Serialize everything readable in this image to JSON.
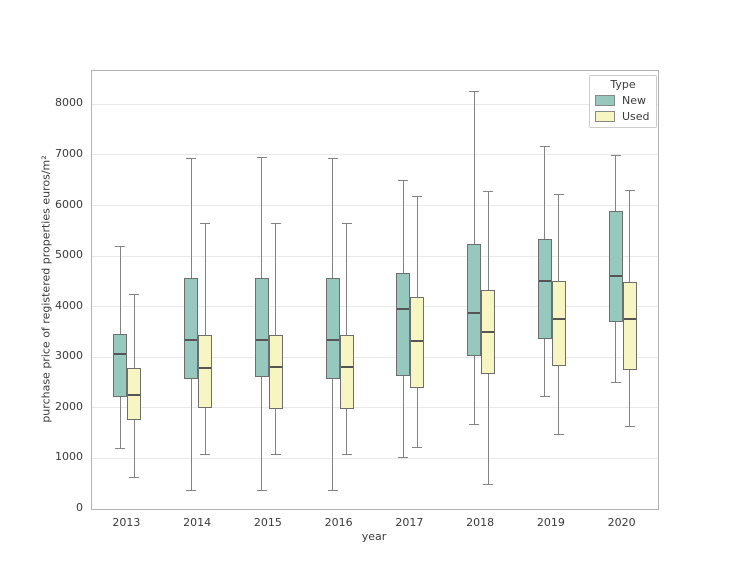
{
  "chart_data": {
    "type": "boxplot",
    "title": "",
    "xlabel": "year",
    "ylabel": "purchase price of registered properties euros/m²",
    "categories": [
      "2013",
      "2014",
      "2015",
      "2016",
      "2017",
      "2018",
      "2019",
      "2020"
    ],
    "yticks": [
      0,
      1000,
      2000,
      3000,
      4000,
      5000,
      6000,
      7000,
      8000
    ],
    "ylim": [
      0,
      8660
    ],
    "grid": "horizontal",
    "legend": {
      "title": "Type",
      "position": "upper right",
      "entries": [
        {
          "label": "New",
          "color": "#96c8be"
        },
        {
          "label": "Used",
          "color": "#f7f6c2"
        }
      ]
    },
    "series": [
      {
        "name": "New",
        "color": "#96c8be",
        "boxes": [
          {
            "min": 1200,
            "q1": 2220,
            "median": 3060,
            "q3": 3460,
            "max": 5190
          },
          {
            "min": 360,
            "q1": 2580,
            "median": 3340,
            "q3": 4570,
            "max": 6930
          },
          {
            "min": 360,
            "q1": 2600,
            "median": 3340,
            "q3": 4570,
            "max": 6940
          },
          {
            "min": 360,
            "q1": 2580,
            "median": 3340,
            "q3": 4570,
            "max": 6930
          },
          {
            "min": 1010,
            "q1": 2630,
            "median": 3950,
            "q3": 4670,
            "max": 6490
          },
          {
            "min": 1670,
            "q1": 3030,
            "median": 3870,
            "q3": 5240,
            "max": 8250
          },
          {
            "min": 2230,
            "q1": 3370,
            "median": 4510,
            "q3": 5340,
            "max": 7160
          },
          {
            "min": 2500,
            "q1": 3700,
            "median": 4610,
            "q3": 5890,
            "max": 6980
          }
        ]
      },
      {
        "name": "Used",
        "color": "#f7f6c2",
        "boxes": [
          {
            "min": 620,
            "q1": 1760,
            "median": 2250,
            "q3": 2790,
            "max": 4240
          },
          {
            "min": 1080,
            "q1": 2000,
            "median": 2790,
            "q3": 3450,
            "max": 5650
          },
          {
            "min": 1080,
            "q1": 1980,
            "median": 2810,
            "q3": 3450,
            "max": 5650
          },
          {
            "min": 1080,
            "q1": 1980,
            "median": 2800,
            "q3": 3450,
            "max": 5650
          },
          {
            "min": 1220,
            "q1": 2400,
            "median": 3330,
            "q3": 4200,
            "max": 6180
          },
          {
            "min": 490,
            "q1": 2670,
            "median": 3490,
            "q3": 4330,
            "max": 6270
          },
          {
            "min": 1480,
            "q1": 2830,
            "median": 3750,
            "q3": 4510,
            "max": 6210
          },
          {
            "min": 1630,
            "q1": 2750,
            "median": 3750,
            "q3": 4490,
            "max": 6300
          }
        ]
      }
    ],
    "style": {
      "box_edge": "#6e6e6e",
      "median": "#555555",
      "whisker": "#828282",
      "gridline": "#e9e9e9",
      "spine": "#b2b2b2",
      "tick_color": "#3b3b3b"
    }
  }
}
